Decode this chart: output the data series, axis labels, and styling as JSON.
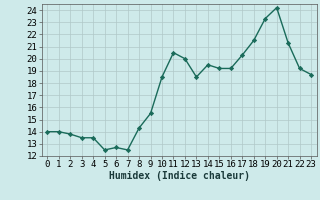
{
  "x": [
    0,
    1,
    2,
    3,
    4,
    5,
    6,
    7,
    8,
    9,
    10,
    11,
    12,
    13,
    14,
    15,
    16,
    17,
    18,
    19,
    20,
    21,
    22,
    23
  ],
  "y": [
    14,
    14,
    13.8,
    13.5,
    13.5,
    12.5,
    12.7,
    12.5,
    14.3,
    15.5,
    18.5,
    20.5,
    20,
    18.5,
    19.5,
    19.2,
    19.2,
    20.3,
    21.5,
    23.3,
    24.2,
    21.3,
    19.2,
    18.7
  ],
  "line_color": "#1a6b5a",
  "marker": "D",
  "marker_size": 2.2,
  "bg_color": "#ceeaea",
  "grid_color": "#b0c8c8",
  "xlabel": "Humidex (Indice chaleur)",
  "ylim": [
    12,
    24.5
  ],
  "xlim": [
    -0.5,
    23.5
  ],
  "yticks": [
    12,
    13,
    14,
    15,
    16,
    17,
    18,
    19,
    20,
    21,
    22,
    23,
    24
  ],
  "xticks": [
    0,
    1,
    2,
    3,
    4,
    5,
    6,
    7,
    8,
    9,
    10,
    11,
    12,
    13,
    14,
    15,
    16,
    17,
    18,
    19,
    20,
    21,
    22,
    23
  ],
  "font_size": 6.5,
  "label_fontsize": 7.0,
  "linewidth": 1.0
}
